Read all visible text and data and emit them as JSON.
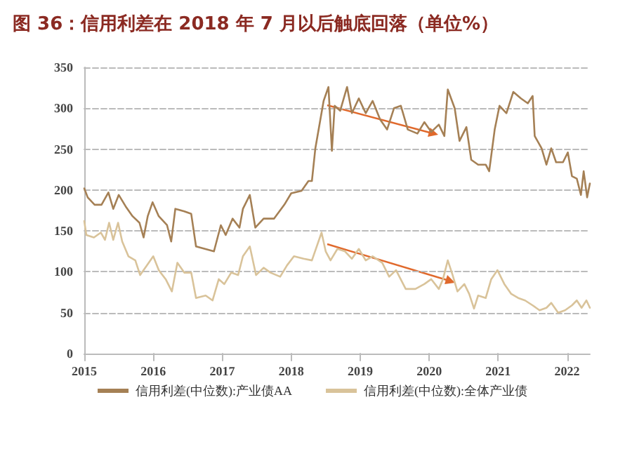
{
  "chart_data": {
    "type": "line",
    "title": "图 36：信用利差在 2018 年 7 月以后触底回落（单位%）",
    "xlim": [
      2015,
      2022.33
    ],
    "xticks": [
      2015,
      2016,
      2017,
      2018,
      2019,
      2020,
      2021,
      2022
    ],
    "ylim": [
      0,
      350
    ],
    "yticks": [
      0,
      50,
      100,
      150,
      200,
      250,
      300,
      350
    ],
    "grid": "y",
    "legend": "bottom",
    "marker": "none",
    "line_style": "solid",
    "series": [
      {
        "name": "信用利差(中位数):产业债AA",
        "color": "#a58055",
        "x": [
          2015.0,
          2015.05,
          2015.15,
          2015.25,
          2015.35,
          2015.42,
          2015.5,
          2015.6,
          2015.7,
          2015.8,
          2015.86,
          2015.92,
          2015.99,
          2016.08,
          2016.2,
          2016.26,
          2016.32,
          2016.45,
          2016.55,
          2016.62,
          2016.75,
          2016.88,
          2016.98,
          2017.05,
          2017.15,
          2017.25,
          2017.3,
          2017.4,
          2017.48,
          2017.6,
          2017.75,
          2017.9,
          2018.0,
          2018.15,
          2018.25,
          2018.3,
          2018.35,
          2018.47,
          2018.54,
          2018.59,
          2018.63,
          2018.71,
          2018.81,
          2018.88,
          2018.98,
          2019.08,
          2019.18,
          2019.29,
          2019.39,
          2019.49,
          2019.59,
          2019.69,
          2019.83,
          2019.93,
          2020.03,
          2020.14,
          2020.22,
          2020.27,
          2020.37,
          2020.44,
          2020.54,
          2020.61,
          2020.71,
          2020.82,
          2020.87,
          2020.95,
          2021.02,
          2021.12,
          2021.22,
          2021.33,
          2021.43,
          2021.5,
          2021.53,
          2021.63,
          2021.7,
          2021.77,
          2021.84,
          2021.94,
          2022.01,
          2022.07,
          2022.14,
          2022.2,
          2022.24,
          2022.29,
          2022.33
        ],
        "values": [
          202,
          191,
          182,
          182,
          197,
          177,
          194,
          180,
          168,
          160,
          142,
          168,
          185,
          168,
          157,
          137,
          177,
          174,
          171,
          131,
          128,
          125,
          157,
          145,
          165,
          154,
          177,
          194,
          154,
          165,
          165,
          182,
          196,
          199,
          211,
          211,
          251,
          309,
          326,
          248,
          303,
          297,
          326,
          294,
          312,
          294,
          309,
          286,
          274,
          300,
          303,
          274,
          269,
          283,
          271,
          280,
          266,
          323,
          300,
          260,
          277,
          237,
          231,
          231,
          223,
          274,
          303,
          294,
          320,
          312,
          306,
          315,
          266,
          251,
          231,
          251,
          234,
          234,
          246,
          217,
          214,
          194,
          223,
          191,
          208
        ]
      },
      {
        "name": "信用利差(中位数):全体产业债",
        "color": "#d9c39a",
        "x": [
          2015.0,
          2015.03,
          2015.14,
          2015.24,
          2015.3,
          2015.36,
          2015.42,
          2015.49,
          2015.55,
          2015.64,
          2015.74,
          2015.81,
          2015.91,
          2016.0,
          2016.08,
          2016.18,
          2016.27,
          2016.35,
          2016.45,
          2016.55,
          2016.62,
          2016.76,
          2016.86,
          2016.95,
          2017.03,
          2017.13,
          2017.23,
          2017.3,
          2017.4,
          2017.49,
          2017.6,
          2017.7,
          2017.84,
          2017.94,
          2018.04,
          2018.18,
          2018.3,
          2018.44,
          2018.5,
          2018.57,
          2018.67,
          2018.78,
          2018.88,
          2018.98,
          2019.08,
          2019.18,
          2019.32,
          2019.42,
          2019.52,
          2019.66,
          2019.8,
          2019.93,
          2020.03,
          2020.14,
          2020.2,
          2020.27,
          2020.34,
          2020.41,
          2020.51,
          2020.58,
          2020.65,
          2020.71,
          2020.82,
          2020.9,
          2020.99,
          2021.09,
          2021.19,
          2021.29,
          2021.39,
          2021.5,
          2021.6,
          2021.7,
          2021.77,
          2021.87,
          2021.97,
          2022.07,
          2022.14,
          2022.21,
          2022.28,
          2022.33
        ],
        "values": [
          162,
          145,
          142,
          148,
          139,
          160,
          139,
          160,
          137,
          119,
          114,
          96,
          108,
          119,
          102,
          91,
          76,
          111,
          99,
          99,
          68,
          71,
          65,
          91,
          85,
          99,
          96,
          119,
          131,
          96,
          105,
          99,
          94,
          108,
          119,
          116,
          114,
          148,
          125,
          114,
          128,
          125,
          116,
          128,
          114,
          119,
          111,
          94,
          102,
          79,
          79,
          85,
          91,
          79,
          91,
          114,
          96,
          76,
          85,
          73,
          55,
          71,
          68,
          91,
          102,
          85,
          73,
          68,
          65,
          59,
          53,
          56,
          62,
          50,
          53,
          59,
          65,
          56,
          65,
          56
        ]
      }
    ]
  }
}
